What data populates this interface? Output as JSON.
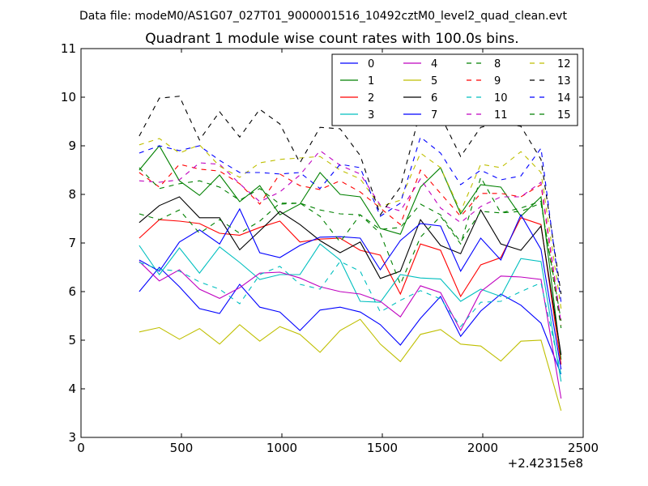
{
  "header": {
    "suptitle": "Data file: modeM0/AS1G07_027T01_9000001516_10492cztM0_level2_quad_clean.evt"
  },
  "chart_data": {
    "type": "line",
    "title": "Quadrant 1 module wise count rates with 100.0s bins.",
    "xlabel": "",
    "ylabel": "",
    "x_offset_label": "+2.42315e8",
    "xlim": [
      0,
      2500
    ],
    "ylim": [
      3,
      11
    ],
    "xticks": [
      0,
      500,
      1000,
      1500,
      2000,
      2500
    ],
    "yticks": [
      3,
      4,
      5,
      6,
      7,
      8,
      9,
      10,
      11
    ],
    "grid": false,
    "legend": {
      "placement": "top-right",
      "columns": 4
    },
    "x": [
      290,
      390,
      490,
      590,
      690,
      790,
      890,
      990,
      1090,
      1190,
      1290,
      1390,
      1490,
      1590,
      1690,
      1790,
      1890,
      1990,
      2090,
      2190,
      2290,
      2390
    ],
    "series": [
      {
        "name": "0",
        "color": "#0000ff",
        "dash": "solid",
        "values": [
          6.0,
          6.5,
          6.1,
          5.65,
          5.55,
          6.15,
          5.68,
          5.58,
          5.2,
          5.62,
          5.68,
          5.58,
          5.32,
          4.9,
          5.45,
          5.9,
          5.08,
          5.6,
          5.95,
          5.72,
          5.35,
          4.3
        ]
      },
      {
        "name": "1",
        "color": "#008000",
        "dash": "solid",
        "values": [
          8.5,
          9.0,
          8.28,
          7.98,
          8.4,
          7.85,
          8.18,
          7.58,
          7.8,
          8.45,
          8.0,
          7.95,
          7.3,
          7.18,
          8.15,
          8.55,
          7.6,
          8.2,
          8.15,
          7.55,
          7.95,
          4.6
        ]
      },
      {
        "name": "2",
        "color": "#ff0000",
        "dash": "solid",
        "values": [
          7.1,
          7.48,
          7.45,
          7.4,
          7.2,
          7.16,
          7.32,
          7.45,
          7.02,
          7.08,
          7.1,
          6.85,
          6.75,
          5.95,
          6.98,
          6.85,
          5.9,
          6.55,
          6.7,
          7.52,
          7.38,
          4.5
        ]
      },
      {
        "name": "3",
        "color": "#00bfbf",
        "dash": "solid",
        "values": [
          6.95,
          6.35,
          6.9,
          6.38,
          6.92,
          6.6,
          6.25,
          6.35,
          6.35,
          6.98,
          6.65,
          5.8,
          5.78,
          6.35,
          6.28,
          6.26,
          5.8,
          6.05,
          5.9,
          6.68,
          6.62,
          4.15
        ]
      },
      {
        "name": "4",
        "color": "#bf00bf",
        "dash": "solid",
        "values": [
          6.62,
          6.22,
          6.45,
          6.05,
          5.86,
          6.08,
          6.38,
          6.4,
          6.28,
          6.1,
          6.0,
          5.95,
          5.8,
          5.48,
          6.12,
          5.98,
          5.2,
          6.0,
          6.32,
          6.3,
          6.25,
          3.8
        ]
      },
      {
        "name": "5",
        "color": "#bfbf00",
        "dash": "solid",
        "values": [
          5.17,
          5.26,
          5.02,
          5.24,
          4.92,
          5.32,
          4.98,
          5.28,
          5.12,
          4.75,
          5.2,
          5.43,
          4.92,
          4.56,
          5.12,
          5.22,
          4.92,
          4.88,
          4.57,
          4.98,
          5.0,
          3.55
        ]
      },
      {
        "name": "6",
        "color": "#000000",
        "dash": "solid",
        "values": [
          7.42,
          7.77,
          7.95,
          7.52,
          7.52,
          6.86,
          7.25,
          7.65,
          7.38,
          7.05,
          6.8,
          7.02,
          6.27,
          6.42,
          7.48,
          6.95,
          6.78,
          7.68,
          6.98,
          6.85,
          7.35,
          4.7
        ]
      },
      {
        "name": "7",
        "color": "#0000ff",
        "dash": "solid",
        "values": [
          6.65,
          6.42,
          7.02,
          7.27,
          6.98,
          7.7,
          6.8,
          6.7,
          6.95,
          7.12,
          7.13,
          7.1,
          6.45,
          7.05,
          7.4,
          7.35,
          6.42,
          7.1,
          6.65,
          7.58,
          6.87,
          4.4
        ]
      },
      {
        "name": "8",
        "color": "#008000",
        "dash": "dashed",
        "values": [
          7.6,
          7.48,
          7.68,
          7.2,
          7.48,
          7.2,
          7.45,
          7.82,
          7.82,
          7.68,
          7.6,
          7.58,
          7.28,
          7.32,
          7.8,
          7.58,
          7.02,
          7.65,
          7.62,
          7.65,
          7.82,
          5.4
        ]
      },
      {
        "name": "9",
        "color": "#ff0000",
        "dash": "dashed",
        "values": [
          8.45,
          8.15,
          8.62,
          8.52,
          8.48,
          8.22,
          7.8,
          8.42,
          8.18,
          8.1,
          8.28,
          8.05,
          7.72,
          7.38,
          8.5,
          8.02,
          7.55,
          8.02,
          8.02,
          7.95,
          8.2,
          5.3
        ]
      },
      {
        "name": "10",
        "color": "#00bfbf",
        "dash": "dashed",
        "values": [
          6.6,
          6.46,
          6.42,
          6.2,
          6.05,
          5.75,
          6.35,
          6.52,
          6.15,
          6.05,
          6.62,
          6.42,
          5.58,
          5.82,
          6.02,
          5.85,
          5.28,
          5.78,
          5.8,
          6.0,
          6.18,
          4.3
        ]
      },
      {
        "name": "11",
        "color": "#bf00bf",
        "dash": "dashed",
        "values": [
          8.28,
          8.25,
          8.3,
          8.65,
          8.62,
          8.22,
          7.85,
          8.05,
          8.4,
          8.9,
          8.6,
          8.42,
          7.78,
          7.66,
          8.32,
          7.72,
          7.42,
          7.75,
          7.95,
          7.95,
          8.25,
          5.35
        ]
      },
      {
        "name": "12",
        "color": "#bfbf00",
        "dash": "dashed",
        "values": [
          9.02,
          9.15,
          8.85,
          9.02,
          8.58,
          8.35,
          8.65,
          8.72,
          8.75,
          8.78,
          8.5,
          8.32,
          7.75,
          7.88,
          8.85,
          8.55,
          7.65,
          8.62,
          8.55,
          8.88,
          8.45,
          5.65
        ]
      },
      {
        "name": "13",
        "color": "#000000",
        "dash": "dashed",
        "values": [
          9.2,
          9.98,
          10.02,
          9.12,
          9.7,
          9.18,
          9.75,
          9.45,
          8.65,
          9.38,
          9.35,
          8.8,
          7.58,
          8.15,
          9.72,
          9.62,
          8.78,
          9.38,
          9.48,
          9.4,
          8.72,
          5.95
        ]
      },
      {
        "name": "14",
        "color": "#0000ff",
        "dash": "dashed",
        "values": [
          8.85,
          9.0,
          8.9,
          9.0,
          8.7,
          8.45,
          8.45,
          8.42,
          8.45,
          8.12,
          8.62,
          8.55,
          7.55,
          7.82,
          9.18,
          8.85,
          8.2,
          8.5,
          8.3,
          8.38,
          8.95,
          5.78
        ]
      },
      {
        "name": "15",
        "color": "#008000",
        "dash": "dashed",
        "values": [
          8.55,
          8.12,
          8.22,
          8.28,
          8.15,
          7.88,
          8.12,
          7.8,
          7.82,
          7.55,
          7.02,
          7.58,
          7.2,
          6.15,
          7.12,
          7.55,
          6.98,
          8.35,
          7.62,
          7.72,
          7.86,
          5.25
        ]
      }
    ]
  }
}
